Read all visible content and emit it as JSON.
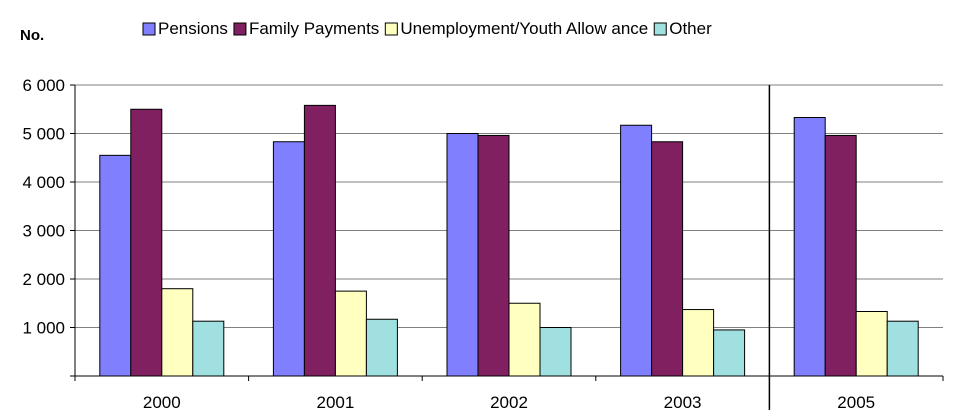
{
  "chart_data": {
    "type": "bar",
    "ylabel": "No.",
    "categories": [
      "2000",
      "2001",
      "2002",
      "2003",
      "2005"
    ],
    "yticks": [
      "6 000",
      "5 000",
      "4 000",
      "3 000",
      "2 000",
      "1 000"
    ],
    "ylim": [
      0,
      6000
    ],
    "grid": true,
    "legend_position": "top",
    "separator_between": [
      "2003",
      "2005"
    ],
    "series": [
      {
        "name": "Pensions",
        "color": "#8080ff",
        "values": [
          4550,
          4830,
          5000,
          5170,
          5330
        ]
      },
      {
        "name": "Family Payments",
        "color": "#802060",
        "values": [
          5500,
          5580,
          4960,
          4830,
          4960
        ]
      },
      {
        "name": "Unemployment/Youth Allow ance",
        "color": "#ffffc0",
        "values": [
          1800,
          1750,
          1500,
          1370,
          1330
        ]
      },
      {
        "name": "Other",
        "color": "#a0e0e0",
        "values": [
          1130,
          1170,
          1000,
          950,
          1130
        ]
      }
    ]
  }
}
